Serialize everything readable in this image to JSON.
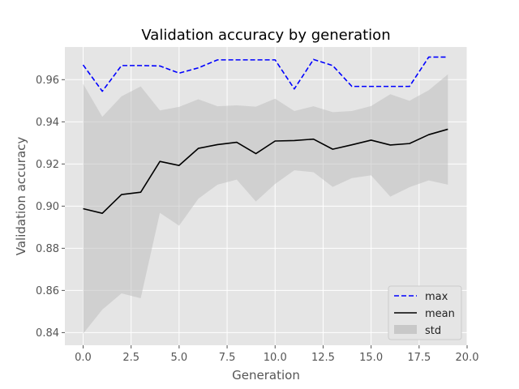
{
  "chart_data": {
    "type": "line",
    "title": "Validation accuracy by generation",
    "xlabel": "Generation",
    "ylabel": "Validation accuracy",
    "xlim": [
      -0.95,
      20.0
    ],
    "ylim": [
      0.834,
      0.9755
    ],
    "xticks": [
      0.0,
      2.5,
      5.0,
      7.5,
      10.0,
      12.5,
      15.0,
      17.5,
      20.0
    ],
    "xtick_labels": [
      "0.0",
      "2.5",
      "5.0",
      "7.5",
      "10.0",
      "12.5",
      "15.0",
      "17.5",
      "20.0"
    ],
    "yticks": [
      0.84,
      0.86,
      0.88,
      0.9,
      0.92,
      0.94,
      0.96
    ],
    "ytick_labels": [
      "0.84",
      "0.86",
      "0.88",
      "0.90",
      "0.92",
      "0.94",
      "0.96"
    ],
    "grid": true,
    "legend_position": "lower-right",
    "x": [
      0,
      1,
      2,
      3,
      4,
      5,
      6,
      7,
      8,
      9,
      10,
      11,
      12,
      13,
      14,
      15,
      16,
      17,
      18,
      19
    ],
    "series": [
      {
        "name": "max",
        "style": "dashed",
        "color": "#0000ff",
        "values": [
          0.967,
          0.9545,
          0.9667,
          0.9667,
          0.9665,
          0.9631,
          0.9656,
          0.9694,
          0.9694,
          0.9694,
          0.9694,
          0.9556,
          0.9696,
          0.9667,
          0.9568,
          0.9568,
          0.9568,
          0.9568,
          0.9707,
          0.9707
        ]
      },
      {
        "name": "mean",
        "style": "solid",
        "color": "#000000",
        "values": [
          0.8988,
          0.8966,
          0.9055,
          0.9066,
          0.9212,
          0.9193,
          0.9274,
          0.9292,
          0.9303,
          0.9249,
          0.9309,
          0.9311,
          0.9318,
          0.927,
          0.9291,
          0.9313,
          0.929,
          0.9297,
          0.9339,
          0.9365
        ]
      }
    ],
    "band": {
      "name": "std",
      "color": "#bfbfbf",
      "upper": [
        0.958,
        0.9424,
        0.9521,
        0.9568,
        0.9454,
        0.9471,
        0.9507,
        0.9474,
        0.9478,
        0.9472,
        0.951,
        0.9451,
        0.9474,
        0.9446,
        0.9451,
        0.9475,
        0.9531,
        0.95,
        0.955,
        0.9625
      ],
      "lower": [
        0.8395,
        0.8509,
        0.8586,
        0.8563,
        0.8968,
        0.8907,
        0.9035,
        0.9102,
        0.9126,
        0.9022,
        0.9105,
        0.917,
        0.9161,
        0.9091,
        0.9133,
        0.9146,
        0.9045,
        0.909,
        0.9122,
        0.9102
      ]
    },
    "colors": {
      "plot_background": "#e5e5e5",
      "grid": "#ffffff"
    }
  }
}
